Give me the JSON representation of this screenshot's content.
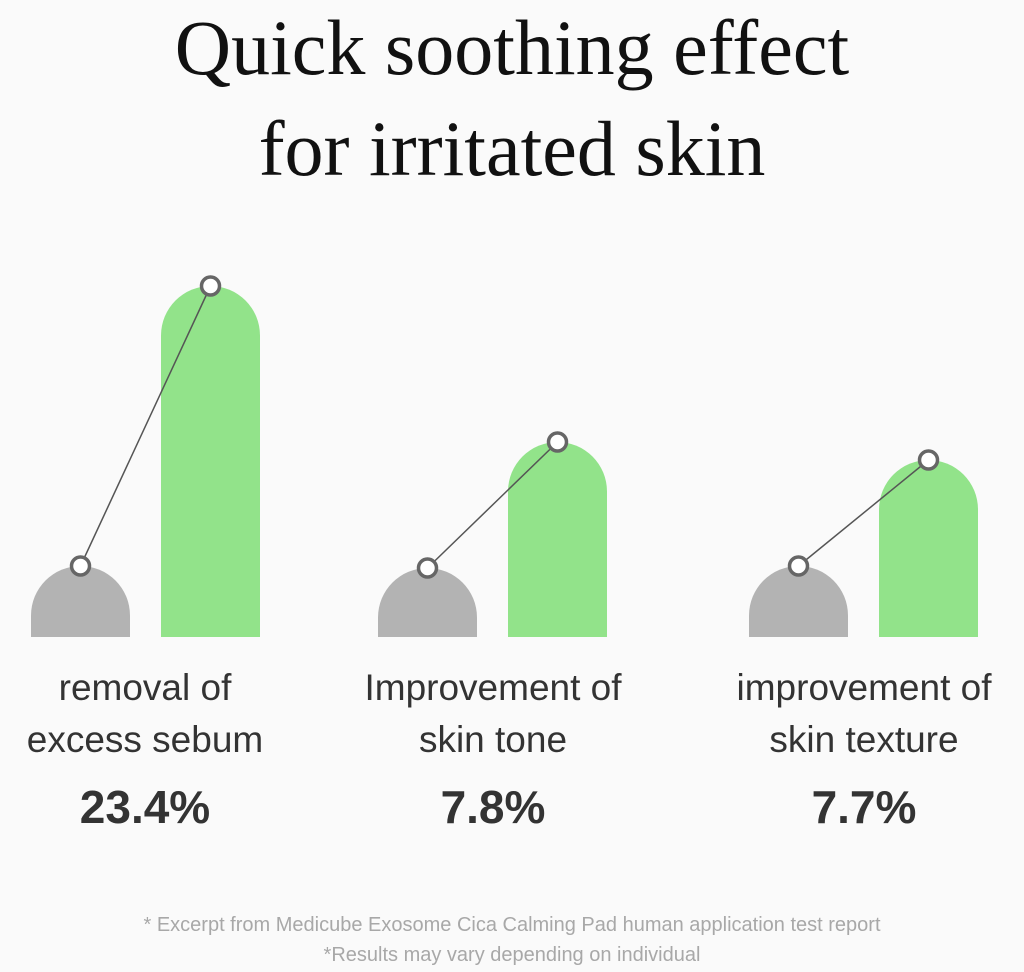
{
  "title_lines": [
    "Quick soothing effect",
    "for irritated skin"
  ],
  "chart_data": {
    "type": "bar",
    "title": "Quick soothing effect for irritated skin",
    "categories": [
      [
        "removal of",
        "excess sebum"
      ],
      [
        "Improvement of",
        "skin tone"
      ],
      [
        "improvement of",
        "skin texture"
      ]
    ],
    "values_percent": [
      "23.4%",
      "7.8%",
      "7.7%"
    ],
    "values": [
      23.4,
      7.8,
      7.7
    ],
    "colors": {
      "before": "#b3b3b3",
      "after": "#92e38a",
      "line": "#555555"
    }
  },
  "footnotes": [
    "* Excerpt from Medicube Exosome Cica Calming Pad human application test report",
    "*Results may vary depending on individual"
  ]
}
